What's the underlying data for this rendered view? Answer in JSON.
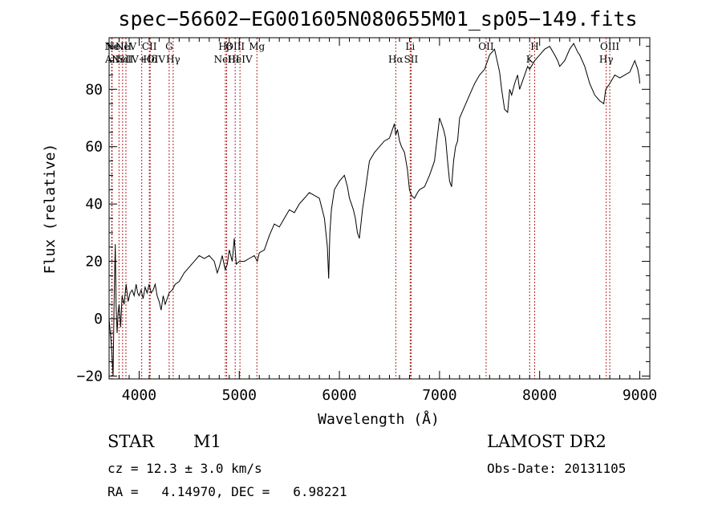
{
  "chart_data": {
    "type": "line",
    "title": "spec−56602−EG001605N080655M01_sp05−149.fits",
    "xlabel": "Wavelength (Å)",
    "ylabel": "Flux (relative)",
    "xlim": [
      3700,
      9100
    ],
    "ylim": [
      -21,
      98
    ],
    "xticks": [
      4000,
      5000,
      6000,
      7000,
      8000,
      9000
    ],
    "yticks": [
      -20,
      0,
      20,
      40,
      60,
      80
    ],
    "ytick_labels": [
      "−20",
      "0",
      "20",
      "40",
      "60",
      "80"
    ],
    "grid": false,
    "line_color": "#000000",
    "marker_color": "#b22222",
    "series": [
      {
        "x": [
          3700,
          3725,
          3740,
          3750,
          3755,
          3762,
          3770,
          3780,
          3790,
          3800,
          3815,
          3830,
          3850,
          3870,
          3890,
          3910,
          3930,
          3950,
          3970,
          3985,
          4000,
          4020,
          4040,
          4060,
          4080,
          4100,
          4120,
          4140,
          4160,
          4180,
          4200,
          4220,
          4240,
          4260,
          4280,
          4300,
          4330,
          4360,
          4400,
          4450,
          4500,
          4550,
          4600,
          4650,
          4700,
          4750,
          4780,
          4800,
          4830,
          4860,
          4880,
          4900,
          4930,
          4950,
          4970,
          5000,
          5050,
          5100,
          5150,
          5180,
          5200,
          5250,
          5300,
          5350,
          5400,
          5450,
          5500,
          5550,
          5600,
          5650,
          5700,
          5750,
          5800,
          5850,
          5880,
          5893,
          5905,
          5920,
          5950,
          6000,
          6050,
          6080,
          6100,
          6120,
          6140,
          6160,
          6180,
          6200,
          6230,
          6260,
          6300,
          6350,
          6400,
          6450,
          6500,
          6530,
          6550,
          6563,
          6580,
          6600,
          6620,
          6650,
          6680,
          6700,
          6720,
          6750,
          6780,
          6800,
          6850,
          6900,
          6950,
          7000,
          7020,
          7040,
          7060,
          7080,
          7100,
          7120,
          7140,
          7160,
          7180,
          7200,
          7250,
          7300,
          7350,
          7400,
          7450,
          7500,
          7550,
          7600,
          7620,
          7650,
          7680,
          7700,
          7720,
          7750,
          7780,
          7800,
          7850,
          7880,
          7900,
          7950,
          8000,
          8050,
          8100,
          8150,
          8180,
          8200,
          8250,
          8300,
          8340,
          8380,
          8400,
          8450,
          8500,
          8550,
          8600,
          8640,
          8660,
          8700,
          8750,
          8800,
          8850,
          8900,
          8950,
          8980,
          8995,
          9000
        ],
        "y": [
          0,
          -10,
          -20,
          5,
          15,
          26,
          5,
          -5,
          2,
          5,
          -3,
          8,
          5,
          12,
          6,
          9,
          10,
          8,
          12,
          9,
          8,
          10,
          7,
          11,
          9,
          12,
          9,
          10,
          12,
          8,
          6,
          3,
          8,
          5,
          7,
          9,
          10,
          12,
          13,
          16,
          18,
          20,
          22,
          21,
          22,
          20,
          16,
          18,
          22,
          17,
          19,
          24,
          20,
          28,
          19,
          20,
          20,
          21,
          22,
          20,
          23,
          24,
          29,
          33,
          32,
          35,
          38,
          37,
          40,
          42,
          44,
          43,
          42,
          35,
          25,
          14,
          30,
          38,
          45,
          48,
          50,
          46,
          42,
          40,
          38,
          35,
          30,
          28,
          38,
          45,
          55,
          58,
          60,
          62,
          63,
          66,
          68,
          64,
          66,
          62,
          60,
          58,
          52,
          45,
          43,
          42,
          44,
          45,
          46,
          50,
          55,
          70,
          68,
          66,
          63,
          55,
          48,
          46,
          55,
          60,
          62,
          70,
          74,
          78,
          82,
          85,
          87,
          92,
          94,
          86,
          80,
          73,
          72,
          80,
          78,
          82,
          85,
          80,
          85,
          88,
          87,
          90,
          92,
          94,
          95,
          92,
          90,
          88,
          90,
          94,
          96,
          93,
          92,
          88,
          82,
          78,
          76,
          75,
          80,
          82,
          85,
          84,
          85,
          86,
          90,
          87,
          84,
          82
        ]
      }
    ],
    "lines": [
      {
        "x": 3726,
        "label": "Ne"
      },
      {
        "x": 3730,
        "label": "AlI"
      },
      {
        "x": 3799,
        "label": "NeIII"
      },
      {
        "x": 3835,
        "label": "NeII"
      },
      {
        "x": 3868,
        "label": "NeV"
      },
      {
        "x": 4026,
        "label": "SiIV+OIV"
      },
      {
        "x": 4102,
        "label": "CII"
      },
      {
        "x": 4110,
        "label": "Hδ"
      },
      {
        "x": 4300,
        "label": "G"
      },
      {
        "x": 4340,
        "label": "Hγ"
      },
      {
        "x": 4861,
        "label": "Hβ"
      },
      {
        "x": 4874,
        "label": "NeIII"
      },
      {
        "x": 4959,
        "label": "OIII"
      },
      {
        "x": 5007,
        "label": "HeIV"
      },
      {
        "x": 5176,
        "label": "Mg"
      },
      {
        "x": 6563,
        "label": "Hα"
      },
      {
        "x": 6707,
        "label": "Li"
      },
      {
        "x": 6716,
        "label": "SII"
      },
      {
        "x": 7465,
        "label": "OII"
      },
      {
        "x": 7900,
        "label": "K"
      },
      {
        "x": 7950,
        "label": "H"
      },
      {
        "x": 8665,
        "label": "Hγ"
      },
      {
        "x": 8700,
        "label": "OIII"
      }
    ]
  },
  "info": {
    "class_label": "STAR",
    "subclass_label": "M1",
    "survey_label": "LAMOST DR2",
    "cz_label": "cz = 12.3 ± 3.0 km/s",
    "obs_date_label": "Obs-Date: 20131105",
    "radec_label": "RA =   4.14970, DEC =   6.98221"
  }
}
